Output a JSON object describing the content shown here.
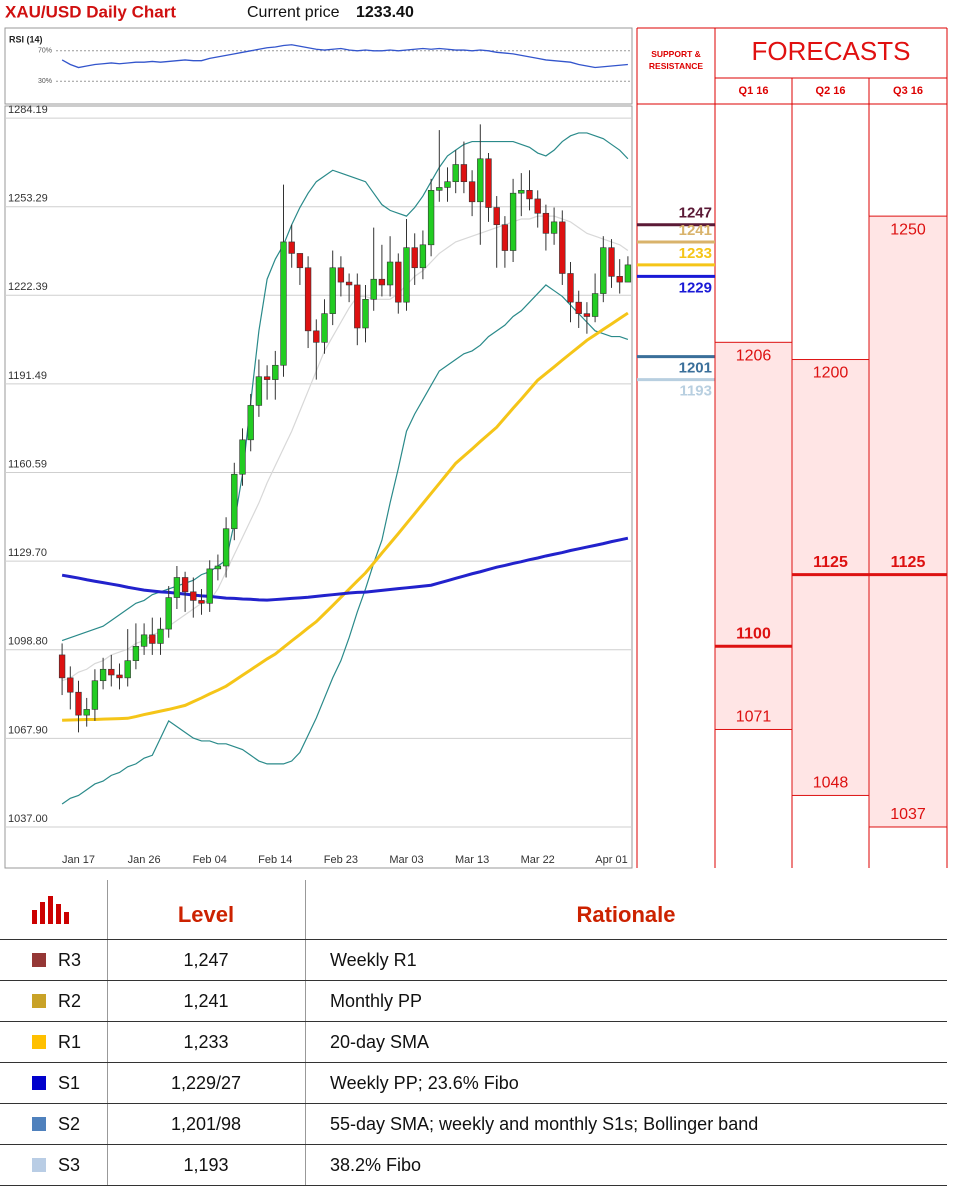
{
  "header": {
    "title": "XAU/USD Daily Chart",
    "price_label": "Current price",
    "price": "1233.40"
  },
  "chart_data": [
    {
      "type": "line",
      "title": "RSI (14)",
      "color": "#3355cc",
      "categories": [
        null,
        null,
        null,
        null,
        null,
        null,
        null,
        null,
        null,
        null,
        null,
        null,
        null,
        null,
        null,
        null,
        null,
        null,
        null,
        null,
        null,
        null,
        null,
        null,
        null,
        null,
        null,
        null,
        null,
        null,
        null,
        null,
        null,
        null,
        null,
        null,
        null,
        null,
        null,
        null,
        null,
        null,
        null,
        null,
        null,
        null,
        null,
        null,
        null,
        null,
        null,
        null,
        null,
        null,
        null,
        null,
        null,
        null,
        null,
        null,
        null,
        null,
        null,
        null,
        null,
        null,
        null,
        null,
        null,
        null
      ],
      "values": [
        58,
        52,
        48,
        50,
        52,
        53,
        54,
        53,
        54,
        55,
        55,
        56,
        55,
        56,
        57,
        58,
        57,
        57,
        60,
        62,
        64,
        66,
        68,
        70,
        72,
        74,
        75,
        77,
        78,
        76,
        74,
        72,
        71,
        72,
        73,
        71,
        70,
        71,
        70,
        70,
        71,
        70,
        71,
        72,
        73,
        72,
        73,
        72,
        71,
        71,
        70,
        71,
        70,
        68,
        67,
        66,
        64,
        62,
        60,
        58,
        57,
        56,
        55,
        52,
        50,
        48,
        49,
        50,
        51,
        52
      ],
      "ylim": [
        0,
        100
      ],
      "yticks": [
        {
          "value": 70,
          "label": "70%"
        },
        {
          "value": 30,
          "label": "30%"
        }
      ],
      "grid": true
    },
    {
      "type": "candlestick",
      "up_color": "#22cc22",
      "down_color": "#dd1111",
      "grid": true,
      "categories": [
        null,
        null,
        "Jan 17",
        null,
        null,
        null,
        null,
        null,
        null,
        null,
        "Jan 26",
        null,
        null,
        null,
        null,
        null,
        null,
        null,
        "Feb 04",
        null,
        null,
        null,
        null,
        null,
        null,
        null,
        "Feb 14",
        null,
        null,
        null,
        null,
        null,
        null,
        null,
        "Feb 23",
        null,
        null,
        null,
        null,
        null,
        null,
        null,
        "Mar 03",
        null,
        null,
        null,
        null,
        null,
        null,
        null,
        "Mar 13",
        null,
        null,
        null,
        null,
        null,
        null,
        null,
        "Mar 22",
        null,
        null,
        null,
        null,
        null,
        null,
        null,
        null,
        "Apr 01",
        null,
        null
      ],
      "open": [
        1097,
        1089,
        1084,
        1076,
        1078,
        1088,
        1092,
        1090,
        1089,
        1095,
        1100,
        1104,
        1101,
        1106,
        1117,
        1124,
        1119,
        1116,
        1115,
        1127,
        1128,
        1141,
        1160,
        1172,
        1184,
        1194,
        1193,
        1198,
        1241,
        1237,
        1232,
        1210,
        1206,
        1216,
        1232,
        1227,
        1226,
        1211,
        1221,
        1228,
        1226,
        1234,
        1220,
        1239,
        1232,
        1240,
        1259,
        1260,
        1262,
        1268,
        1262,
        1255,
        1270,
        1253,
        1247,
        1238,
        1258,
        1259,
        1256,
        1251,
        1244,
        1248,
        1230,
        1220,
        1216,
        1215,
        1223,
        1239,
        1229,
        1227
      ],
      "high": [
        1101,
        1093,
        1088,
        1082,
        1092,
        1096,
        1097,
        1094,
        1106,
        1108,
        1108,
        1110,
        1110,
        1121,
        1128,
        1126,
        1124,
        1120,
        1130,
        1132,
        1145,
        1164,
        1176,
        1188,
        1200,
        1198,
        1203,
        1261,
        1247,
        1237,
        1236,
        1214,
        1221,
        1238,
        1236,
        1230,
        1230,
        1226,
        1246,
        1240,
        1243,
        1237,
        1249,
        1244,
        1245,
        1263,
        1280,
        1267,
        1273,
        1276,
        1266,
        1282,
        1272,
        1257,
        1250,
        1263,
        1265,
        1266,
        1259,
        1254,
        1253,
        1252,
        1234,
        1224,
        1220,
        1230,
        1243,
        1242,
        1235,
        1236
      ],
      "low": [
        1083,
        1078,
        1070,
        1072,
        1074,
        1085,
        1086,
        1085,
        1086,
        1092,
        1097,
        1097,
        1097,
        1103,
        1113,
        1112,
        1110,
        1111,
        1112,
        1123,
        1124,
        1137,
        1156,
        1168,
        1180,
        1186,
        1186,
        1194,
        1232,
        1226,
        1204,
        1193,
        1202,
        1212,
        1222,
        1220,
        1205,
        1206,
        1217,
        1222,
        1222,
        1216,
        1217,
        1226,
        1228,
        1236,
        1255,
        1255,
        1258,
        1258,
        1250,
        1240,
        1248,
        1232,
        1232,
        1234,
        1250,
        1252,
        1246,
        1238,
        1240,
        1226,
        1213,
        1211,
        1209,
        1213,
        1220,
        1225,
        1223,
        1228
      ],
      "close": [
        1089,
        1084,
        1076,
        1078,
        1088,
        1092,
        1090,
        1089,
        1095,
        1100,
        1104,
        1101,
        1106,
        1117,
        1124,
        1119,
        1116,
        1115,
        1127,
        1128,
        1141,
        1160,
        1172,
        1184,
        1194,
        1193,
        1198,
        1241,
        1237,
        1232,
        1210,
        1206,
        1216,
        1232,
        1227,
        1226,
        1211,
        1221,
        1228,
        1226,
        1234,
        1220,
        1239,
        1232,
        1240,
        1259,
        1260,
        1262,
        1268,
        1262,
        1255,
        1270,
        1253,
        1247,
        1238,
        1258,
        1259,
        1256,
        1251,
        1244,
        1248,
        1230,
        1220,
        1216,
        1215,
        1223,
        1239,
        1229,
        1227,
        1233
      ],
      "lines": [
        {
          "color": "#d8d8d8",
          "values": [
            1088,
            1089,
            1091,
            1092,
            1094,
            1095,
            1097,
            1098,
            1099,
            1101,
            1102,
            1104,
            1105,
            1107,
            1109,
            1111,
            1113,
            1115,
            1116,
            1120,
            1126,
            1132,
            1138,
            1144,
            1150,
            1157,
            1163,
            1169,
            1175,
            1182,
            1189,
            1196,
            1203,
            1208,
            1213,
            1218,
            1222,
            1222,
            1221,
            1221,
            1221,
            1223,
            1226,
            1229,
            1231,
            1234,
            1237,
            1239,
            1241,
            1242,
            1243,
            1244,
            1245,
            1246,
            1247,
            1248,
            1249,
            1249,
            1250,
            1250,
            1250,
            1249,
            1248,
            1246,
            1244,
            1243,
            1242,
            1241,
            1240,
            1238
          ]
        },
        {
          "color": "#2a8a8a",
          "values": [
            1102,
            1103,
            1104,
            1105,
            1106,
            1107,
            1109,
            1111,
            1113,
            1115,
            1116,
            1118,
            1119,
            1120,
            1121,
            1122,
            1123,
            1125,
            1126,
            1128,
            1130,
            1143,
            1160,
            1185,
            1210,
            1228,
            1235,
            1240,
            1247,
            1253,
            1258,
            1262,
            1264,
            1266,
            1265,
            1264,
            1263,
            1262,
            1258,
            1254,
            1252,
            1251,
            1250,
            1253,
            1257,
            1262,
            1267,
            1271,
            1273,
            1275,
            1276,
            1276,
            1276,
            1276,
            1276,
            1276,
            1275,
            1274,
            1272,
            1271,
            1273,
            1276,
            1278,
            1279,
            1279,
            1278,
            1277,
            1275,
            1273,
            1270
          ]
        },
        {
          "color": "#2a8a8a",
          "values": [
            1045,
            1047,
            1048,
            1050,
            1052,
            1053,
            1055,
            1056,
            1058,
            1059,
            1061,
            1062,
            1068,
            1074,
            1072,
            1070,
            1068,
            1067,
            1067,
            1066,
            1066,
            1065,
            1064,
            1062,
            1060,
            1059,
            1059,
            1059,
            1060,
            1063,
            1069,
            1075,
            1082,
            1089,
            1095,
            1103,
            1112,
            1120,
            1129,
            1137,
            1150,
            1162,
            1175,
            1181,
            1186,
            1191,
            1196,
            1198,
            1200,
            1202,
            1203,
            1205,
            1208,
            1210,
            1212,
            1215,
            1217,
            1220,
            1223,
            1226,
            1224,
            1222,
            1219,
            1216,
            1213,
            1210,
            1209,
            1208,
            1208,
            1207
          ]
        },
        {
          "color": "#f5c518",
          "values": [
            1074.2,
            1074.3,
            1074.4,
            1074.5,
            1074.5,
            1074.6,
            1074.7,
            1074.8,
            1074.9,
            1075.5,
            1076.2,
            1076.8,
            1077.4,
            1078.0,
            1078.7,
            1079.4,
            1080.7,
            1082.0,
            1083.4,
            1084.7,
            1086.1,
            1088.0,
            1089.9,
            1091.8,
            1093.7,
            1095.6,
            1097.3,
            1099.6,
            1101.9,
            1104.1,
            1106.4,
            1108.6,
            1111.4,
            1114.2,
            1117.1,
            1119.9,
            1122.8,
            1125.6,
            1129.0,
            1132.5,
            1135.9,
            1139.3,
            1142.8,
            1146.3,
            1149.8,
            1153.3,
            1156.8,
            1160.3,
            1163.8,
            1166.3,
            1168.8,
            1171.4,
            1173.9,
            1176.4,
            1179.7,
            1183.0,
            1186.2,
            1189.5,
            1192.8,
            1195.1,
            1197.4,
            1199.8,
            1202.1,
            1204.4,
            1206.7,
            1208.6,
            1210.5,
            1212.4,
            1214.3,
            1216.2
          ]
        },
        {
          "color": "#2222cc",
          "values": [
            1124.8,
            1124.3,
            1123.8,
            1123.2,
            1122.7,
            1122.2,
            1121.7,
            1121.2,
            1120.6,
            1120.1,
            1119.6,
            1119.3,
            1119.0,
            1118.8,
            1118.5,
            1118.2,
            1117.9,
            1117.6,
            1117.4,
            1117.1,
            1116.8,
            1116.7,
            1116.5,
            1116.4,
            1116.2,
            1116.1,
            1116.3,
            1116.5,
            1116.7,
            1116.9,
            1117.1,
            1117.4,
            1117.7,
            1118.0,
            1118.3,
            1118.6,
            1118.8,
            1118.9,
            1119.2,
            1119.5,
            1119.8,
            1120.1,
            1120.4,
            1120.7,
            1121.0,
            1121.3,
            1122.1,
            1122.9,
            1123.7,
            1124.5,
            1125.3,
            1126.0,
            1126.8,
            1127.6,
            1128.2,
            1128.9,
            1129.5,
            1130.2,
            1130.8,
            1131.5,
            1132.1,
            1132.7,
            1133.4,
            1134.0,
            1134.6,
            1135.2,
            1135.8,
            1136.5,
            1137.1,
            1137.7
          ]
        }
      ],
      "ylim": [
        1022.7,
        1288.4
      ],
      "yticks": [
        {
          "value": 1037,
          "label": "1037.00"
        },
        {
          "value": 1067.9,
          "label": "1067.90"
        },
        {
          "value": 1098.8,
          "label": "1098.80"
        },
        {
          "value": 1129.7,
          "label": "1129.70"
        },
        1160.59,
        1191.49,
        1222.39,
        1253.29,
        1284.19
      ]
    },
    {
      "type": "forecast",
      "title": "FORECASTS",
      "color": "#dd1111",
      "support_resistance": {
        "title": "SUPPORT & RESISTANCE",
        "levels": [
          {
            "value": 1247,
            "color": "#5b1a36"
          },
          {
            "value": 1241,
            "color": "#d9b36b"
          },
          {
            "value": 1233,
            "color": "#f5c518"
          },
          {
            "value": 1229,
            "color": "#1a1ad6"
          },
          {
            "value": 1201,
            "color": "#3a6f9a"
          },
          {
            "value": 1193,
            "color": "#b8cfe0"
          }
        ]
      },
      "categories": [
        "Q1 16",
        "Q2 16",
        "Q3 16"
      ],
      "high": [
        1206,
        1200,
        1250
      ],
      "median": [
        1100,
        1125,
        1125
      ],
      "low": [
        1071,
        1048,
        1037
      ],
      "ylim": [
        1022.7,
        1288.4
      ]
    }
  ],
  "table": {
    "header": [
      "Level",
      "Rationale"
    ],
    "rows": [
      {
        "code": "R3",
        "level": "1,247",
        "rationale": "Weekly R1",
        "color": "#953735"
      },
      {
        "code": "R2",
        "level": "1,241",
        "rationale": "Monthly PP",
        "color": "#c9a227"
      },
      {
        "code": "R1",
        "level": "1,233",
        "rationale": "20-day SMA",
        "color": "#ffc000"
      },
      {
        "code": "S1",
        "level": "1,229/27",
        "rationale": "Weekly PP; 23.6% Fibo",
        "color": "#0000cc"
      },
      {
        "code": "S2",
        "level": "1,201/98",
        "rationale": "55-day SMA; weekly and monthly S1s; Bollinger band",
        "color": "#4f81bd"
      },
      {
        "code": "S3",
        "level": "1,193",
        "rationale": "38.2% Fibo",
        "color": "#b9cde5"
      }
    ]
  }
}
